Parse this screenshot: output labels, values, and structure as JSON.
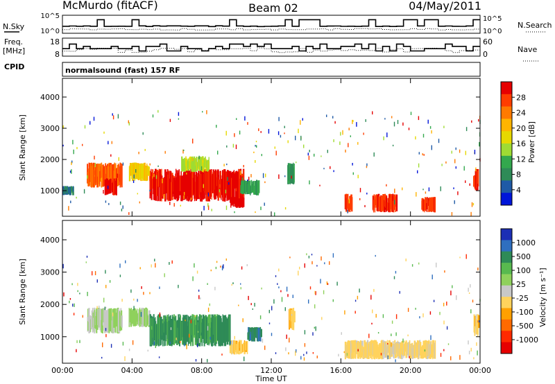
{
  "header": {
    "station": "McMurdo (fitACF)",
    "beam": "Beam 02",
    "date": "04/May/2011"
  },
  "top_panels": {
    "nsky_label": "N.Sky",
    "nsky_ticks": [
      "10^5",
      "10^0"
    ],
    "nsearch_label": "N.Search",
    "nsearch_ticks": [
      "10^5",
      "10^0"
    ],
    "freq_label_1": "Freq.",
    "freq_label_2": "[MHz]",
    "freq_ticks": [
      "18",
      "8"
    ],
    "nave_label": "Nave",
    "nave_ticks": [
      "60",
      "0"
    ],
    "cpid_label": "CPID",
    "cpid_text": "normalsound (fast) 157 RF"
  },
  "axes": {
    "ylabel": "Slant Range [km]",
    "xlabel": "Time UT",
    "yticks": [
      "4000",
      "3000",
      "2000",
      "1000"
    ],
    "xticks": [
      "00:00",
      "04:00",
      "08:00",
      "12:00",
      "16:00",
      "20:00",
      "00:00"
    ]
  },
  "power_colorbar": {
    "title": "Power [dB]",
    "ticks": [
      "28",
      "24",
      "20",
      "16",
      "12",
      "8",
      "4"
    ],
    "colors": [
      "#e60000",
      "#ff3d00",
      "#ff7a00",
      "#ffb400",
      "#e6d800",
      "#9fdb33",
      "#33a84d",
      "#2e8b57",
      "#1f5aa6",
      "#0015d9"
    ]
  },
  "velocity_colorbar": {
    "title": "Velocity [m s⁻¹]",
    "ticks": [
      "1000",
      "500",
      "100",
      "25",
      "-25",
      "-100",
      "-500",
      "-1000"
    ],
    "colors": [
      "#1c2fb5",
      "#2f6fbf",
      "#2e8b57",
      "#58b94f",
      "#8fd15c",
      "#c8c8c8",
      "#ffd35c",
      "#ffa000",
      "#ff6a00",
      "#ff2a00",
      "#e60000"
    ]
  },
  "chart_data": [
    {
      "type": "heatmap",
      "title": "Power [dB]",
      "xlabel": "Time UT",
      "ylabel": "Slant Range [km]",
      "xlim": [
        0,
        24
      ],
      "ylim": [
        180,
        4600
      ],
      "zlim": [
        0,
        30
      ],
      "regions": [
        {
          "t0": 0.0,
          "t1": 0.6,
          "r0": 850,
          "r1": 1150,
          "value": 6
        },
        {
          "t0": 1.4,
          "t1": 3.4,
          "r0": 1100,
          "r1": 1900,
          "value": 24
        },
        {
          "t0": 2.4,
          "t1": 3.1,
          "r0": 850,
          "r1": 1400,
          "value": 28
        },
        {
          "t0": 3.8,
          "t1": 5.0,
          "r0": 1300,
          "r1": 1900,
          "value": 18
        },
        {
          "t0": 5.0,
          "t1": 10.4,
          "r0": 650,
          "r1": 1700,
          "value": 28
        },
        {
          "t0": 6.8,
          "t1": 8.4,
          "r0": 1600,
          "r1": 2100,
          "value": 14
        },
        {
          "t0": 9.6,
          "t1": 10.4,
          "r0": 450,
          "r1": 800,
          "value": 30
        },
        {
          "t0": 10.2,
          "t1": 11.3,
          "r0": 850,
          "r1": 1350,
          "value": 10
        },
        {
          "t0": 12.9,
          "t1": 13.3,
          "r0": 1200,
          "r1": 1900,
          "value": 8
        },
        {
          "t0": 16.2,
          "t1": 16.6,
          "r0": 300,
          "r1": 900,
          "value": 26
        },
        {
          "t0": 17.8,
          "t1": 19.2,
          "r0": 300,
          "r1": 900,
          "value": 26
        },
        {
          "t0": 20.6,
          "t1": 21.4,
          "r0": 300,
          "r1": 800,
          "value": 26
        },
        {
          "t0": 23.6,
          "t1": 23.9,
          "r0": 1000,
          "r1": 1700,
          "value": 26
        }
      ]
    },
    {
      "type": "heatmap",
      "title": "Velocity [m s⁻¹]",
      "xlabel": "Time UT",
      "ylabel": "Slant Range [km]",
      "xlim": [
        0,
        24
      ],
      "ylim": [
        180,
        4600
      ],
      "zlim": [
        -1000,
        1000
      ],
      "regions": [
        {
          "t0": 1.4,
          "t1": 3.4,
          "r0": 1100,
          "r1": 1900,
          "value": 100
        },
        {
          "t0": 3.8,
          "t1": 5.0,
          "r0": 1300,
          "r1": 1900,
          "value": 150
        },
        {
          "t0": 5.0,
          "t1": 9.6,
          "r0": 700,
          "r1": 1700,
          "value": 500
        },
        {
          "t0": 9.6,
          "t1": 10.6,
          "r0": 450,
          "r1": 900,
          "value": -200
        },
        {
          "t0": 10.6,
          "t1": 11.4,
          "r0": 850,
          "r1": 1300,
          "value": 600
        },
        {
          "t0": 13.0,
          "t1": 13.3,
          "r0": 1200,
          "r1": 1900,
          "value": -200
        },
        {
          "t0": 16.2,
          "t1": 21.4,
          "r0": 300,
          "r1": 900,
          "value": -150
        },
        {
          "t0": 23.6,
          "t1": 23.9,
          "r0": 1000,
          "r1": 1700,
          "value": -200
        }
      ]
    }
  ]
}
